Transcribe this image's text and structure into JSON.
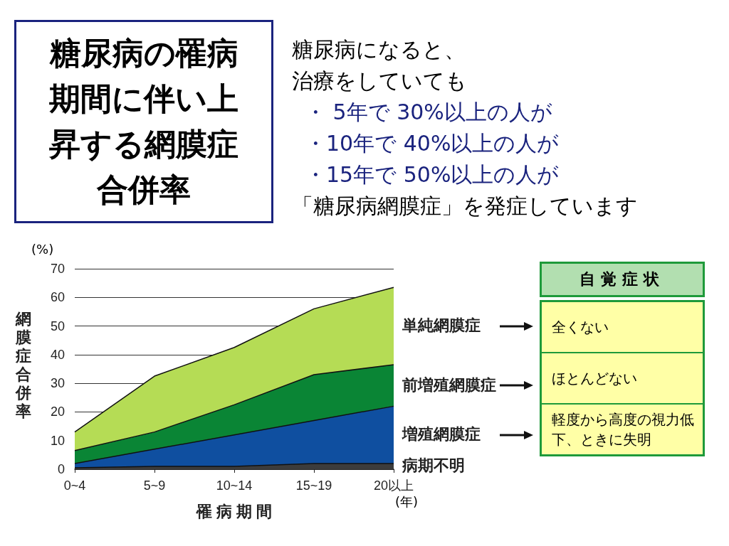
{
  "chart_data": {
    "type": "area",
    "title": "糖尿病の罹病期間に伴い上昇する網膜症合併率",
    "subtitle": "糖尿病になると、治療をしていても",
    "xlabel": "罹 病 期 間",
    "ylabel": "網膜症合併率",
    "categories": [
      "0~4",
      "5~9",
      "10~14",
      "15~19",
      "20以上"
    ],
    "series": [
      {
        "name": "病期不明",
        "color": "#3c3c3c",
        "values": [
          0.5,
          1,
          1,
          2,
          2
        ]
      },
      {
        "name": "増殖網膜症",
        "color": "#0f4fa0",
        "values": [
          1.5,
          6,
          11,
          15,
          20
        ]
      },
      {
        "name": "前増殖網膜症",
        "color": "#0a8535",
        "values": [
          4.5,
          6,
          10.5,
          16,
          14.5
        ]
      },
      {
        "name": "単純網膜症",
        "color": "#b5dc55",
        "values": [
          6.5,
          19.5,
          20,
          23,
          27
        ]
      }
    ],
    "stacked": true,
    "ylim": [
      0,
      70
    ],
    "yticks": [
      0,
      10,
      20,
      30,
      40,
      50,
      60,
      70
    ],
    "grid": "y",
    "legend": "right",
    "annotations": [
      "・ 5年で 30%以上の人が",
      "・10年で 40%以上の人が",
      "・15年で 50%以上の人が",
      "「糖尿病網膜症」を発症しています",
      "(%)",
      "(年)",
      "自覚症状",
      "全くない",
      "ほとんどない",
      "軽度から高度の視力低下、ときに失明"
    ]
  }
}
